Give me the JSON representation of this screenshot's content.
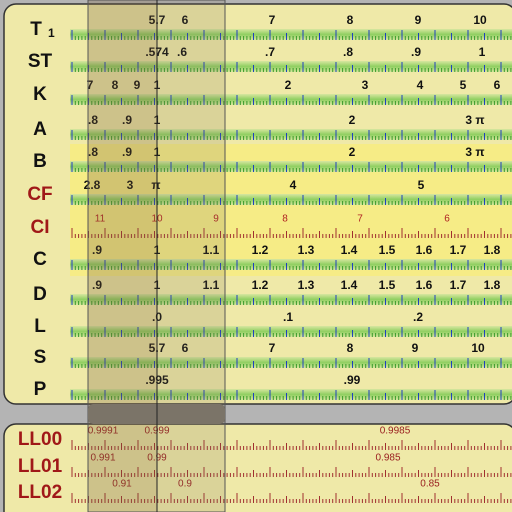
{
  "top_panel": {
    "scales": [
      {
        "name": "T",
        "sub": "1",
        "labels": [
          "5.7",
          "6",
          "7",
          "8",
          "9",
          "10"
        ]
      },
      {
        "name": "ST",
        "labels": [
          ".574",
          ".6",
          ".7",
          ".8",
          ".9",
          "1"
        ]
      },
      {
        "name": "K",
        "labels": [
          "7",
          "8",
          "9",
          "1",
          "2",
          "3",
          "4",
          "5",
          "6"
        ]
      },
      {
        "name": "A",
        "labels": [
          ".8",
          ".9",
          "1",
          "2",
          "3 π"
        ]
      },
      {
        "name": "B",
        "labels": [
          ".8",
          ".9",
          "1",
          "2",
          "3 π"
        ]
      },
      {
        "name": "CF",
        "name_color": "#a01818",
        "labels": [
          "2.8",
          "3",
          "π",
          "4",
          "5"
        ]
      },
      {
        "name": "CI",
        "name_color": "#a01818",
        "label_color": "#b02222",
        "labels": [
          "11",
          "10",
          "9",
          "8",
          "7",
          "6"
        ]
      },
      {
        "name": "C",
        "labels": [
          ".9",
          "1",
          "1.1",
          "1.2",
          "1.3",
          "1.4",
          "1.5",
          "1.6",
          "1.7",
          "1.8"
        ]
      },
      {
        "name": "D",
        "labels": [
          ".9",
          "1",
          "1.1",
          "1.2",
          "1.3",
          "1.4",
          "1.5",
          "1.6",
          "1.7",
          "1.8"
        ]
      },
      {
        "name": "L",
        "labels": [
          ".0",
          ".1",
          ".2"
        ]
      },
      {
        "name": "S",
        "labels": [
          "5.7",
          "6",
          "7",
          "8",
          "9",
          "10"
        ]
      },
      {
        "name": "P",
        "labels": [
          ".995",
          ".99"
        ]
      }
    ]
  },
  "bottom_panel": {
    "scales": [
      {
        "name": "LL00",
        "name_color": "#a01818",
        "label_color": "#9a2020",
        "labels": [
          "0.9991",
          "0.999",
          "0.9985"
        ]
      },
      {
        "name": "LL01",
        "name_color": "#a01818",
        "label_color": "#9a2020",
        "labels": [
          "0.991",
          "0.99",
          "0.985"
        ]
      },
      {
        "name": "LL02",
        "name_color": "#a01818",
        "label_color": "#9a2020",
        "labels": [
          "0.91",
          "0.9",
          "0.85"
        ]
      }
    ]
  }
}
